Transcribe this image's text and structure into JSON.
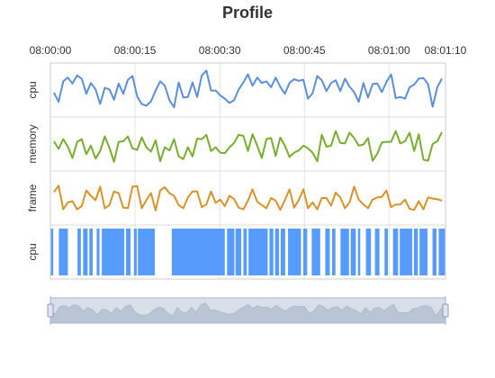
{
  "chart_data": {
    "type": "line",
    "title": "Profile",
    "x_range": [
      "08:00:00",
      "08:01:10"
    ],
    "time_ticks": [
      "08:00:00",
      "08:00:15",
      "08:00:30",
      "08:00:45",
      "08:01:00",
      "08:01:10"
    ],
    "tick_seconds": [
      0,
      15,
      30,
      45,
      60,
      70
    ],
    "grid": true,
    "rows": [
      {
        "label": "cpu",
        "kind": "line",
        "color": "#5b8fd9",
        "values": [
          0.45,
          0.28,
          0.66,
          0.73,
          0.62,
          0.77,
          0.71,
          0.43,
          0.63,
          0.51,
          0.24,
          0.54,
          0.51,
          0.32,
          0.62,
          0.43,
          0.69,
          0.76,
          0.38,
          0.24,
          0.21,
          0.29,
          0.49,
          0.66,
          0.58,
          0.31,
          0.18,
          0.64,
          0.36,
          0.37,
          0.64,
          0.37,
          0.77,
          0.86,
          0.49,
          0.49,
          0.4,
          0.34,
          0.26,
          0.31,
          0.51,
          0.64,
          0.79,
          0.58,
          0.73,
          0.63,
          0.66,
          0.55,
          0.73,
          0.56,
          0.43,
          0.63,
          0.7,
          0.67,
          0.69,
          0.34,
          0.44,
          0.76,
          0.68,
          0.48,
          0.63,
          0.68,
          0.48,
          0.71,
          0.56,
          0.46,
          0.28,
          0.63,
          0.36,
          0.61,
          0.62,
          0.46,
          0.65,
          0.79,
          0.35,
          0.37,
          0.34,
          0.55,
          0.6,
          0.71,
          0.72,
          0.61,
          0.19,
          0.55,
          0.71
        ]
      },
      {
        "label": "memory",
        "kind": "line",
        "color": "#78ad2e",
        "values": [
          0.55,
          0.41,
          0.59,
          0.45,
          0.24,
          0.54,
          0.59,
          0.31,
          0.47,
          0.23,
          0.37,
          0.64,
          0.43,
          0.17,
          0.54,
          0.55,
          0.64,
          0.42,
          0.39,
          0.62,
          0.44,
          0.36,
          0.57,
          0.18,
          0.44,
          0.38,
          0.59,
          0.27,
          0.22,
          0.44,
          0.27,
          0.6,
          0.59,
          0.67,
          0.37,
          0.44,
          0.34,
          0.33,
          0.44,
          0.52,
          0.67,
          0.65,
          0.37,
          0.68,
          0.47,
          0.24,
          0.59,
          0.61,
          0.28,
          0.62,
          0.47,
          0.26,
          0.34,
          0.38,
          0.47,
          0.42,
          0.34,
          0.18,
          0.67,
          0.45,
          0.47,
          0.74,
          0.52,
          0.51,
          0.71,
          0.61,
          0.47,
          0.49,
          0.61,
          0.19,
          0.32,
          0.53,
          0.54,
          0.54,
          0.74,
          0.51,
          0.55,
          0.71,
          0.37,
          0.68,
          0.21,
          0.19,
          0.5,
          0.55,
          0.72
        ]
      },
      {
        "label": "frame",
        "kind": "line",
        "color": "#d99227",
        "values": [
          0.61,
          0.73,
          0.29,
          0.42,
          0.44,
          0.29,
          0.35,
          0.64,
          0.54,
          0.46,
          0.71,
          0.31,
          0.37,
          0.62,
          0.59,
          0.32,
          0.31,
          0.71,
          0.72,
          0.31,
          0.46,
          0.59,
          0.27,
          0.64,
          0.7,
          0.59,
          0.54,
          0.37,
          0.31,
          0.51,
          0.62,
          0.62,
          0.33,
          0.38,
          0.62,
          0.41,
          0.47,
          0.35,
          0.54,
          0.48,
          0.32,
          0.29,
          0.45,
          0.66,
          0.43,
          0.37,
          0.31,
          0.5,
          0.45,
          0.28,
          0.46,
          0.66,
          0.32,
          0.46,
          0.66,
          0.31,
          0.42,
          0.29,
          0.5,
          0.5,
          0.36,
          0.6,
          0.51,
          0.31,
          0.42,
          0.71,
          0.47,
          0.38,
          0.31,
          0.47,
          0.51,
          0.52,
          0.64,
          0.33,
          0.38,
          0.38,
          0.47,
          0.3,
          0.28,
          0.44,
          0.29,
          0.51,
          0.49,
          0.48,
          0.45
        ]
      },
      {
        "label": "cpu",
        "kind": "blocks",
        "color": "#579bfc",
        "blocks": [
          [
            0.1,
            0.5
          ],
          [
            1.5,
            3.1
          ],
          [
            4.8,
            5.4
          ],
          [
            5.8,
            6.6
          ],
          [
            6.9,
            7.5
          ],
          [
            8.2,
            8.7
          ],
          [
            9.1,
            13.1
          ],
          [
            13.4,
            14.2
          ],
          [
            14.8,
            15.3
          ],
          [
            15.5,
            18.5
          ],
          [
            21.5,
            30.9
          ],
          [
            31.3,
            32.6
          ],
          [
            32.8,
            33.8
          ],
          [
            34.2,
            34.8
          ],
          [
            35.1,
            38.5
          ],
          [
            38.8,
            39.5
          ],
          [
            39.8,
            40.5
          ],
          [
            40.8,
            41.6
          ],
          [
            42.1,
            44.4
          ],
          [
            44.8,
            45.5
          ],
          [
            46.3,
            47.8
          ],
          [
            48.7,
            49.5
          ],
          [
            49.9,
            50.5
          ],
          [
            51.4,
            52.9
          ],
          [
            53.2,
            54.1
          ],
          [
            54.5,
            54.9
          ],
          [
            55.9,
            56.8
          ],
          [
            57.5,
            58.3
          ],
          [
            59.2,
            59.8
          ],
          [
            60.7,
            61.6
          ],
          [
            61.9,
            64.1
          ],
          [
            64.4,
            65.1
          ],
          [
            65.4,
            66.8
          ],
          [
            67.7,
            68.4
          ],
          [
            68.8,
            69.9
          ]
        ]
      }
    ]
  },
  "data_zoom": {
    "start_percent": 0,
    "end_percent": 100
  }
}
